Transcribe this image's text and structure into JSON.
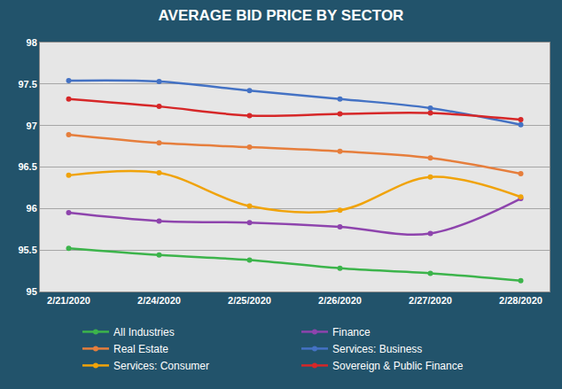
{
  "chart_data": {
    "type": "line",
    "title": "AVERAGE BID PRICE BY SECTOR",
    "categories": [
      "2/21/2020",
      "2/24/2020",
      "2/25/2020",
      "2/26/2020",
      "2/27/2020",
      "2/28/2020"
    ],
    "series": [
      {
        "name": "All Industries",
        "color": "#3cb44b",
        "values": [
          95.52,
          95.44,
          95.38,
          95.28,
          95.22,
          95.13
        ]
      },
      {
        "name": "Finance",
        "color": "#8e44ad",
        "values": [
          95.95,
          95.85,
          95.83,
          95.78,
          95.7,
          96.12
        ]
      },
      {
        "name": "Real Estate",
        "color": "#e67e3c",
        "values": [
          96.89,
          96.79,
          96.74,
          96.69,
          96.61,
          96.42
        ]
      },
      {
        "name": "Services: Business",
        "color": "#4472c4",
        "values": [
          97.54,
          97.53,
          97.42,
          97.32,
          97.21,
          97.01
        ]
      },
      {
        "name": "Services: Consumer",
        "color": "#f0a30a",
        "values": [
          96.4,
          96.43,
          96.03,
          95.98,
          96.38,
          96.14
        ]
      },
      {
        "name": "Sovereign & Public Finance",
        "color": "#d62728",
        "values": [
          97.32,
          97.23,
          97.12,
          97.14,
          97.15,
          97.07
        ]
      }
    ],
    "ylim": [
      95,
      98
    ],
    "yticks": [
      95,
      95.5,
      96,
      96.5,
      97,
      97.5,
      98
    ],
    "grid": true,
    "legend": "bottom",
    "marker": "circle",
    "line_style": "smooth"
  }
}
